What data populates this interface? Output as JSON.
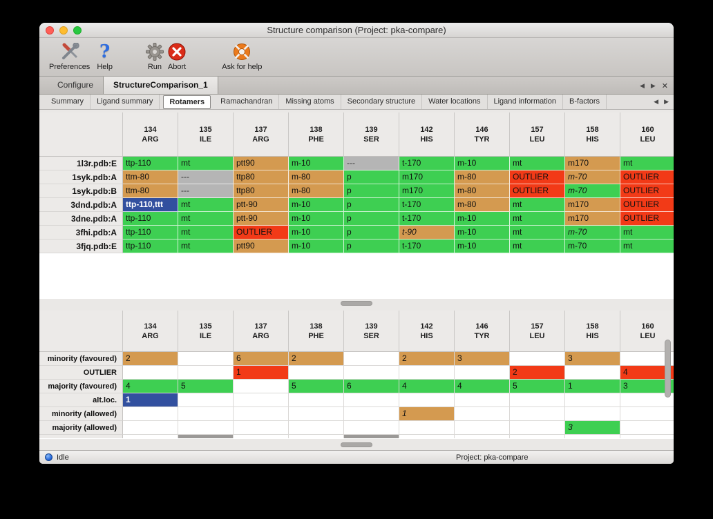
{
  "window": {
    "title": "Structure comparison (Project: pka-compare)"
  },
  "toolbar": {
    "items": [
      {
        "label": "Preferences"
      },
      {
        "label": "Help"
      },
      {
        "label": "Run"
      },
      {
        "label": "Abort"
      },
      {
        "label": "Ask for help"
      }
    ],
    "help_glyph": "?"
  },
  "tabs": {
    "items": [
      {
        "label": "Configure"
      },
      {
        "label": "StructureComparison_1"
      }
    ],
    "controls": {
      "prev": "◀",
      "next": "▶",
      "close": "✕"
    }
  },
  "subtabs": {
    "items": [
      "Summary",
      "Ligand summary",
      "Rotamers",
      "Ramachandran",
      "Missing atoms",
      "Secondary structure",
      "Water locations",
      "Ligand information",
      "B-factors"
    ],
    "active": "Rotamers"
  },
  "columns": [
    [
      "134",
      "ARG"
    ],
    [
      "135",
      "ILE"
    ],
    [
      "137",
      "ARG"
    ],
    [
      "138",
      "PHE"
    ],
    [
      "139",
      "SER"
    ],
    [
      "142",
      "HIS"
    ],
    [
      "146",
      "TYR"
    ],
    [
      "157",
      "LEU"
    ],
    [
      "158",
      "HIS"
    ],
    [
      "160",
      "LEU"
    ]
  ],
  "top_table": {
    "rows": [
      {
        "label": "1l3r.pdb:E",
        "cells": [
          [
            "ttp-110",
            "green"
          ],
          [
            "mt",
            "green"
          ],
          [
            "ptt90",
            "orange"
          ],
          [
            "m-10",
            "green"
          ],
          [
            "---",
            "gray"
          ],
          [
            "t-170",
            "green"
          ],
          [
            "m-10",
            "green"
          ],
          [
            "mt",
            "green"
          ],
          [
            "m170",
            "orange"
          ],
          [
            "mt",
            "green"
          ]
        ]
      },
      {
        "label": "1syk.pdb:A",
        "cells": [
          [
            "ttm-80",
            "orange"
          ],
          [
            "---",
            "gray"
          ],
          [
            "ttp80",
            "orange"
          ],
          [
            "m-80",
            "orange"
          ],
          [
            "p",
            "green"
          ],
          [
            "m170",
            "green"
          ],
          [
            "m-80",
            "orange"
          ],
          [
            "OUTLIER",
            "red"
          ],
          [
            "m-70",
            "orange",
            true
          ],
          [
            "OUTLIER",
            "red"
          ]
        ]
      },
      {
        "label": "1syk.pdb:B",
        "cells": [
          [
            "ttm-80",
            "orange"
          ],
          [
            "---",
            "gray"
          ],
          [
            "ttp80",
            "orange"
          ],
          [
            "m-80",
            "orange"
          ],
          [
            "p",
            "green"
          ],
          [
            "m170",
            "green"
          ],
          [
            "m-80",
            "orange"
          ],
          [
            "OUTLIER",
            "red"
          ],
          [
            "m-70",
            "green",
            true
          ],
          [
            "OUTLIER",
            "red"
          ]
        ]
      },
      {
        "label": "3dnd.pdb:A",
        "cells": [
          [
            "ttp-110,ttt",
            "blue"
          ],
          [
            "mt",
            "green"
          ],
          [
            "ptt-90",
            "orange"
          ],
          [
            "m-10",
            "green"
          ],
          [
            "p",
            "green"
          ],
          [
            "t-170",
            "green"
          ],
          [
            "m-80",
            "orange"
          ],
          [
            "mt",
            "green"
          ],
          [
            "m170",
            "orange"
          ],
          [
            "OUTLIER",
            "red"
          ]
        ]
      },
      {
        "label": "3dne.pdb:A",
        "cells": [
          [
            "ttp-110",
            "green"
          ],
          [
            "mt",
            "green"
          ],
          [
            "ptt-90",
            "orange"
          ],
          [
            "m-10",
            "green"
          ],
          [
            "p",
            "green"
          ],
          [
            "t-170",
            "green"
          ],
          [
            "m-10",
            "green"
          ],
          [
            "mt",
            "green"
          ],
          [
            "m170",
            "orange"
          ],
          [
            "OUTLIER",
            "red"
          ]
        ]
      },
      {
        "label": "3fhi.pdb:A",
        "cells": [
          [
            "ttp-110",
            "green"
          ],
          [
            "mt",
            "green"
          ],
          [
            "OUTLIER",
            "red"
          ],
          [
            "m-10",
            "green"
          ],
          [
            "p",
            "green"
          ],
          [
            "t-90",
            "orange",
            true
          ],
          [
            "m-10",
            "green"
          ],
          [
            "mt",
            "green"
          ],
          [
            "m-70",
            "green",
            true
          ],
          [
            "mt",
            "green"
          ]
        ]
      },
      {
        "label": "3fjq.pdb:E",
        "cells": [
          [
            "ttp-110",
            "green"
          ],
          [
            "mt",
            "green"
          ],
          [
            "ptt90",
            "orange"
          ],
          [
            "m-10",
            "green"
          ],
          [
            "p",
            "green"
          ],
          [
            "t-170",
            "green"
          ],
          [
            "m-10",
            "green"
          ],
          [
            "mt",
            "green"
          ],
          [
            "m-70",
            "green"
          ],
          [
            "mt",
            "green"
          ]
        ]
      }
    ]
  },
  "bottom_table": {
    "rows": [
      {
        "label": "minority (favoured)",
        "cells": [
          [
            "2",
            "orange"
          ],
          [
            "",
            ""
          ],
          [
            "6",
            "orange"
          ],
          [
            "2",
            "orange"
          ],
          [
            "",
            ""
          ],
          [
            "2",
            "orange"
          ],
          [
            "3",
            "orange"
          ],
          [
            "",
            ""
          ],
          [
            "3",
            "orange"
          ],
          [
            "",
            ""
          ]
        ]
      },
      {
        "label": "OUTLIER",
        "cells": [
          [
            "",
            ""
          ],
          [
            "",
            ""
          ],
          [
            "1",
            "red"
          ],
          [
            "",
            ""
          ],
          [
            "",
            ""
          ],
          [
            "",
            ""
          ],
          [
            "",
            ""
          ],
          [
            "2",
            "red"
          ],
          [
            "",
            ""
          ],
          [
            "4",
            "red"
          ]
        ]
      },
      {
        "label": "majority (favoured)",
        "cells": [
          [
            "4",
            "green"
          ],
          [
            "5",
            "green"
          ],
          [
            "",
            ""
          ],
          [
            "5",
            "green"
          ],
          [
            "6",
            "green"
          ],
          [
            "4",
            "green"
          ],
          [
            "4",
            "green"
          ],
          [
            "5",
            "green"
          ],
          [
            "1",
            "green"
          ],
          [
            "3",
            "green"
          ]
        ]
      },
      {
        "label": "alt.loc.",
        "cells": [
          [
            "1",
            "blue"
          ],
          [
            "",
            ""
          ],
          [
            "",
            ""
          ],
          [
            "",
            ""
          ],
          [
            "",
            ""
          ],
          [
            "",
            ""
          ],
          [
            "",
            ""
          ],
          [
            "",
            ""
          ],
          [
            "",
            ""
          ],
          [
            "",
            ""
          ]
        ]
      },
      {
        "label": "minority (allowed)",
        "cells": [
          [
            "",
            ""
          ],
          [
            "",
            ""
          ],
          [
            "",
            ""
          ],
          [
            "",
            ""
          ],
          [
            "",
            ""
          ],
          [
            "1",
            "orange",
            true
          ],
          [
            "",
            ""
          ],
          [
            "",
            ""
          ],
          [
            "",
            ""
          ],
          [
            "",
            ""
          ]
        ]
      },
      {
        "label": "majority (allowed)",
        "cells": [
          [
            "",
            ""
          ],
          [
            "",
            ""
          ],
          [
            "",
            ""
          ],
          [
            "",
            ""
          ],
          [
            "",
            ""
          ],
          [
            "",
            ""
          ],
          [
            "",
            ""
          ],
          [
            "",
            ""
          ],
          [
            "3",
            "green",
            true
          ],
          [
            "",
            ""
          ]
        ]
      }
    ],
    "partial_row": [
      "",
      "gray",
      "",
      "",
      "gray",
      "",
      "",
      "",
      "",
      ""
    ]
  },
  "statusbar": {
    "status": "Idle",
    "project": "Project: pka-compare"
  },
  "colors": {
    "green": "#3ecf52",
    "orange": "#d49a50",
    "red": "#f23a17",
    "gray": "#b5b5b5",
    "blue": "#32509f",
    "accent_blue": "#1d5fd6"
  }
}
